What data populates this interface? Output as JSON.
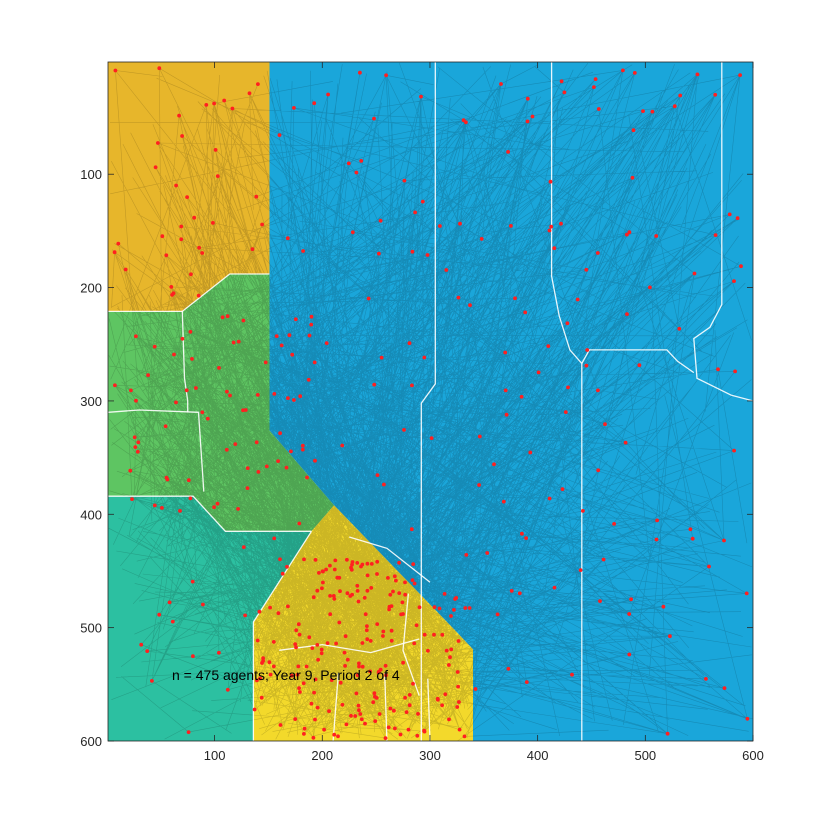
{
  "chart_data": {
    "type": "scatter",
    "title": "",
    "xlabel": "",
    "ylabel": "",
    "xlim": [
      1,
      600
    ],
    "ylim": [
      1,
      600
    ],
    "y_direction": "reverse",
    "x_ticks": [
      100,
      200,
      300,
      400,
      500,
      600
    ],
    "y_ticks": [
      100,
      200,
      300,
      400,
      500,
      600
    ],
    "grid": false,
    "annotation": "n = 475 agents; Year 9, Period 2 of 4",
    "n_agents": 475,
    "colors": {
      "teal": "#2cc0a1",
      "green": "#5ec562",
      "gold": "#e7b62b",
      "yellow": "#f3d92b",
      "blue": "#1aa6da",
      "agent": "#ff2020",
      "trail": "#000000",
      "boundary": "#ffffff"
    },
    "regions": [
      {
        "name": "gold-region",
        "color": "gold",
        "polygon": [
          [
            1,
            1
          ],
          [
            151,
            1
          ],
          [
            151,
            188
          ],
          [
            114,
            188
          ],
          [
            70,
            221
          ],
          [
            1,
            221
          ]
        ]
      },
      {
        "name": "green-region",
        "color": "green",
        "polygon": [
          [
            1,
            221
          ],
          [
            70,
            221
          ],
          [
            114,
            188
          ],
          [
            151,
            188
          ],
          [
            151,
            326
          ],
          [
            211,
            392
          ],
          [
            190,
            415
          ],
          [
            110,
            415
          ],
          [
            80,
            384
          ],
          [
            1,
            384
          ]
        ]
      },
      {
        "name": "teal-region",
        "color": "teal",
        "polygon": [
          [
            1,
            384
          ],
          [
            80,
            384
          ],
          [
            110,
            415
          ],
          [
            190,
            415
          ],
          [
            136,
            495
          ],
          [
            136,
            600
          ],
          [
            1,
            600
          ]
        ]
      },
      {
        "name": "yellow-region",
        "color": "yellow",
        "polygon": [
          [
            211,
            392
          ],
          [
            323,
            502
          ],
          [
            340,
            519
          ],
          [
            340,
            600
          ],
          [
            136,
            600
          ],
          [
            136,
            495
          ],
          [
            190,
            415
          ]
        ]
      },
      {
        "name": "blue-region",
        "color": "blue",
        "polygon": [
          [
            151,
            1
          ],
          [
            600,
            1
          ],
          [
            600,
            600
          ],
          [
            340,
            600
          ],
          [
            340,
            519
          ],
          [
            323,
            502
          ],
          [
            211,
            392
          ],
          [
            151,
            326
          ]
        ]
      }
    ],
    "boundaries": [
      [
        [
          1,
          221
        ],
        [
          70,
          221
        ],
        [
          114,
          188
        ],
        [
          151,
          188
        ]
      ],
      [
        [
          1,
          384
        ],
        [
          80,
          384
        ],
        [
          110,
          415
        ],
        [
          190,
          415
        ]
      ],
      [
        [
          1,
          310
        ],
        [
          30,
          308
        ],
        [
          85,
          310
        ],
        [
          90,
          380
        ]
      ],
      [
        [
          70,
          221
        ],
        [
          72,
          280
        ],
        [
          75,
          300
        ],
        [
          75,
          310
        ]
      ],
      [
        [
          190,
          415
        ],
        [
          136,
          495
        ],
        [
          136,
          600
        ]
      ],
      [
        [
          305,
          1
        ],
        [
          305,
          285
        ],
        [
          292,
          302
        ],
        [
          292,
          600
        ]
      ],
      [
        [
          413,
          1
        ],
        [
          413,
          190
        ],
        [
          420,
          225
        ],
        [
          430,
          255
        ],
        [
          441,
          267
        ],
        [
          441,
          600
        ]
      ],
      [
        [
          441,
          267
        ],
        [
          448,
          255
        ],
        [
          520,
          255
        ],
        [
          530,
          265
        ],
        [
          545,
          275
        ]
      ],
      [
        [
          571,
          1
        ],
        [
          571,
          215
        ],
        [
          560,
          235
        ],
        [
          545,
          245
        ],
        [
          548,
          280
        ],
        [
          580,
          295
        ]
      ],
      [
        [
          580,
          295
        ],
        [
          600,
          300
        ]
      ],
      [
        [
          225,
          420
        ],
        [
          260,
          430
        ],
        [
          300,
          460
        ]
      ],
      [
        [
          160,
          520
        ],
        [
          200,
          515
        ],
        [
          245,
          522
        ],
        [
          290,
          510
        ]
      ],
      [
        [
          210,
          600
        ],
        [
          215,
          540
        ]
      ],
      [
        [
          260,
          600
        ],
        [
          258,
          540
        ]
      ],
      [
        [
          300,
          600
        ],
        [
          298,
          545
        ]
      ],
      [
        [
          280,
          470
        ],
        [
          275,
          520
        ],
        [
          290,
          560
        ]
      ]
    ],
    "agent_clusters": [
      {
        "region": "gold-region",
        "count": 35,
        "x_range": [
          5,
          145
        ],
        "y_range": [
          5,
          215
        ]
      },
      {
        "region": "green-region",
        "count": 65,
        "x_range": [
          5,
          190
        ],
        "y_range": [
          225,
          410
        ]
      },
      {
        "region": "teal-region",
        "count": 25,
        "x_range": [
          5,
          185
        ],
        "y_range": [
          420,
          598
        ]
      },
      {
        "region": "yellow-region",
        "count": 180,
        "x_range": [
          145,
          338
        ],
        "y_range": [
          430,
          598
        ]
      },
      {
        "region": "blue-region",
        "count": 170,
        "x_range": [
          155,
          598
        ],
        "y_range": [
          5,
          598
        ]
      }
    ],
    "trail_count": 1600
  }
}
